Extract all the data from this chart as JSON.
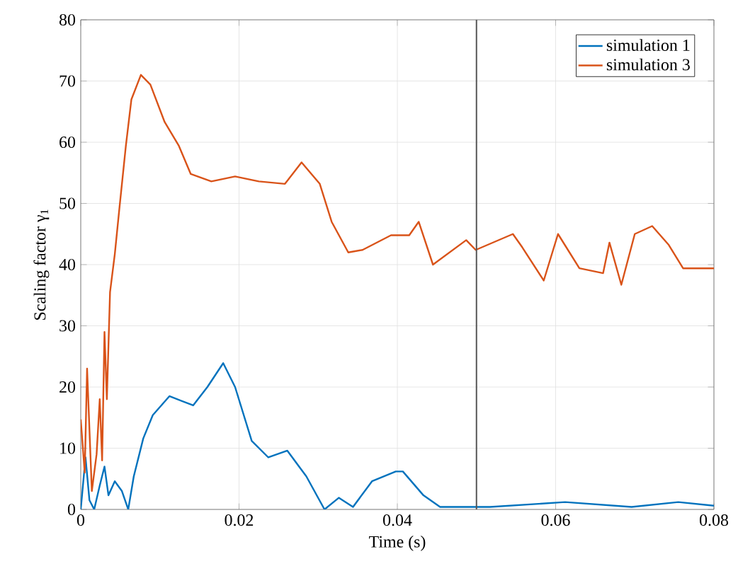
{
  "chart_data": {
    "type": "line",
    "xlabel": "Time (s)",
    "ylabel": "Scaling factor γ$_{1}$",
    "xlim": [
      0,
      0.08
    ],
    "ylim": [
      0,
      80
    ],
    "xticks": [
      0,
      0.02,
      0.04,
      0.06,
      0.08
    ],
    "yticks": [
      0,
      10,
      20,
      30,
      40,
      50,
      60,
      70,
      80
    ],
    "grid": true,
    "legend": "top right",
    "ref_lines": [
      {
        "axis": "x",
        "value": 0.05,
        "color": "#555555"
      }
    ],
    "series": [
      {
        "name": "simulation 1",
        "color": "#0072bd",
        "x": [
          0,
          0.0006,
          0.0011,
          0.0017,
          0.0024,
          0.003,
          0.0035,
          0.0043,
          0.0052,
          0.006,
          0.0067,
          0.0079,
          0.0091,
          0.0112,
          0.0142,
          0.016,
          0.018,
          0.0195,
          0.0216,
          0.0237,
          0.0261,
          0.0285,
          0.0308,
          0.0326,
          0.0344,
          0.0368,
          0.0398,
          0.0407,
          0.0433,
          0.0454,
          0.0517,
          0.0612,
          0.0696,
          0.0755,
          0.08
        ],
        "values": [
          0,
          8.5,
          1.5,
          0,
          3.9,
          7,
          2.3,
          4.6,
          3,
          0,
          5.4,
          11.6,
          15.4,
          18.5,
          17,
          20,
          23.9,
          20,
          11.2,
          8.5,
          9.6,
          5.4,
          0,
          1.9,
          0.4,
          4.6,
          6.2,
          6.2,
          2.3,
          0.4,
          0.4,
          1.2,
          0.4,
          1.2,
          0.6
        ]
      },
      {
        "name": "simulation 3",
        "color": "#d95319",
        "x": [
          0,
          0.0005,
          0.0008,
          0.0014,
          0.002,
          0.0024,
          0.0027,
          0.003,
          0.0033,
          0.0037,
          0.0043,
          0.0049,
          0.0057,
          0.0064,
          0.0076,
          0.0088,
          0.0106,
          0.0124,
          0.0139,
          0.0165,
          0.0195,
          0.0225,
          0.0258,
          0.0279,
          0.0302,
          0.0317,
          0.0338,
          0.0356,
          0.0392,
          0.0415,
          0.0427,
          0.0445,
          0.0487,
          0.0499,
          0.0546,
          0.0558,
          0.0585,
          0.0603,
          0.063,
          0.066,
          0.0668,
          0.0683,
          0.07,
          0.0722,
          0.0743,
          0.0761,
          0.08
        ],
        "values": [
          14.7,
          6,
          23,
          3,
          9,
          18,
          8,
          29,
          18,
          35.5,
          41.7,
          49.4,
          59.4,
          67,
          71,
          69.4,
          63.3,
          59.4,
          54.8,
          53.6,
          54.4,
          53.6,
          53.2,
          56.7,
          53.2,
          47,
          42,
          42.4,
          44.8,
          44.8,
          47,
          40,
          44,
          42.4,
          45,
          42.8,
          37.4,
          45,
          39.4,
          38.6,
          43.6,
          36.7,
          45,
          46.3,
          43.2,
          39.4,
          39.4
        ]
      }
    ]
  }
}
